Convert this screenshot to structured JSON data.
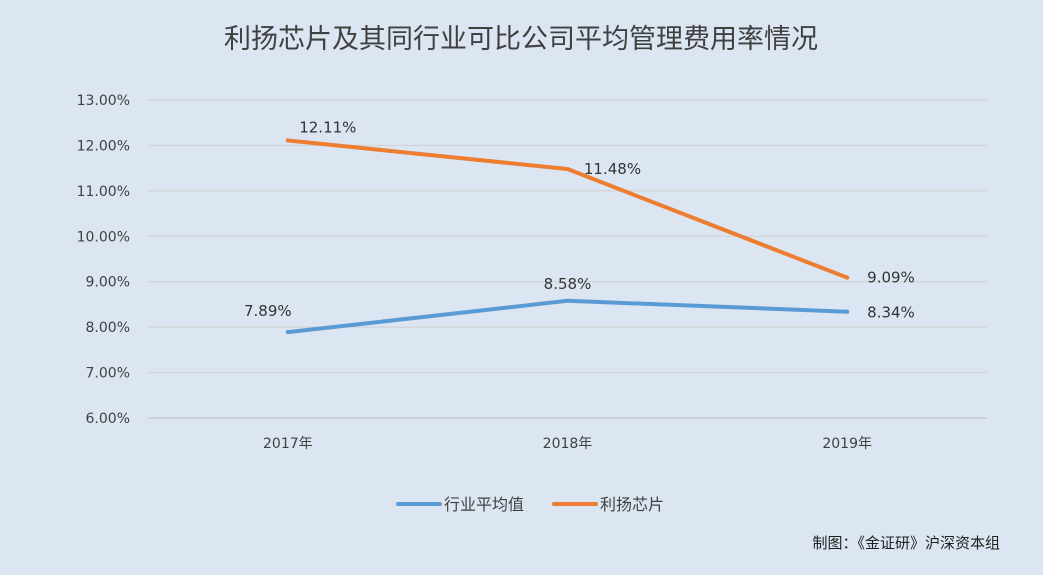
{
  "chart_data": {
    "type": "line",
    "title": "利扬芯片及其同行业可比公司平均管理费用率情况",
    "categories": [
      "2017年",
      "2018年",
      "2019年"
    ],
    "y_ticks": [
      "6.00%",
      "7.00%",
      "8.00%",
      "9.00%",
      "10.00%",
      "11.00%",
      "12.00%",
      "13.00%"
    ],
    "ylim": [
      6,
      13
    ],
    "unit": "%",
    "grid": true,
    "legend_position": "bottom",
    "series": [
      {
        "name": "行业平均值",
        "values": [
          7.89,
          8.58,
          8.34
        ],
        "labels": [
          "7.89%",
          "8.58%",
          "8.34%"
        ],
        "color": "#5b9bd5"
      },
      {
        "name": "利扬芯片",
        "values": [
          12.11,
          11.48,
          9.09
        ],
        "labels": [
          "12.11%",
          "11.48%",
          "9.09%"
        ],
        "color": "#ed7d31"
      }
    ]
  },
  "credit": "制图：《金证研》沪深资本组"
}
